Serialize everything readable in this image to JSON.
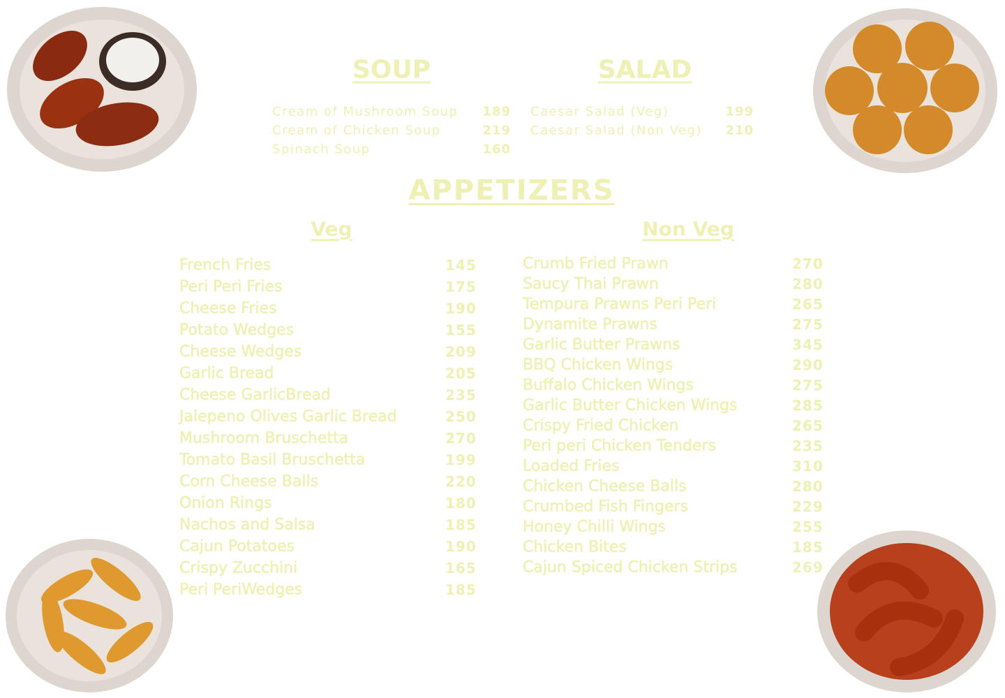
{
  "soup": {
    "title": "SOUP",
    "items": [
      {
        "name": "Cream of Mushroom Soup",
        "price": 189
      },
      {
        "name": "Cream of Chicken Soup",
        "price": 219
      },
      {
        "name": "Spinach Soup",
        "price": 160
      }
    ]
  },
  "salad": {
    "title": "SALAD",
    "items": [
      {
        "name": "Caesar Salad (Veg)",
        "price": 199
      },
      {
        "name": "Caesar Salad (Non Veg)",
        "price": 210
      }
    ]
  },
  "appetizers": {
    "title": "APPETIZERS",
    "veg": {
      "title": "Veg",
      "items": [
        {
          "name": "French Fries",
          "price": 145
        },
        {
          "name": "Peri Peri Fries",
          "price": 175
        },
        {
          "name": "Cheese Fries",
          "price": 190
        },
        {
          "name": "Potato Wedges",
          "price": 155
        },
        {
          "name": "Cheese Wedges",
          "price": 209
        },
        {
          "name": "Garlic Bread",
          "price": 205
        },
        {
          "name": "Cheese GarlicBread",
          "price": 235
        },
        {
          "name": "Jalepeno Olives Garlic Bread",
          "price": 250
        },
        {
          "name": "Mushroom Bruschetta",
          "price": 270
        },
        {
          "name": "Tomato Basil Bruschetta",
          "price": 199
        },
        {
          "name": "Corn Cheese Balls",
          "price": 220
        },
        {
          "name": "Onion Rings",
          "price": 180
        },
        {
          "name": "Nachos and Salsa",
          "price": 185
        },
        {
          "name": "Cajun Potatoes",
          "price": 190
        },
        {
          "name": "Crispy Zucchini",
          "price": 165
        },
        {
          "name": "Peri PeriWedges",
          "price": 185
        }
      ]
    },
    "non_veg": {
      "title": "Non Veg",
      "items": [
        {
          "name": "Crumb Fried Prawn",
          "price": 270
        },
        {
          "name": "Saucy Thai Prawn",
          "price": 280
        },
        {
          "name": "Tempura Prawns Peri Peri",
          "price": 265
        },
        {
          "name": "Dynamite Prawns",
          "price": 275
        },
        {
          "name": "Garlic Butter Prawns",
          "price": 345
        },
        {
          "name": "BBQ Chicken Wings",
          "price": 290
        },
        {
          "name": "Buffalo Chicken Wings",
          "price": 275
        },
        {
          "name": "Garlic Butter Chicken Wings",
          "price": 285
        },
        {
          "name": "Crispy Fried Chicken",
          "price": 265
        },
        {
          "name": "Peri peri Chicken Tenders",
          "price": 235
        },
        {
          "name": "Loaded Fries",
          "price": 310
        },
        {
          "name": "Chicken Cheese Balls",
          "price": 280
        },
        {
          "name": "Crumbed Fish Fingers",
          "price": 229
        },
        {
          "name": "Honey Chilli Wings",
          "price": 255
        },
        {
          "name": "Chicken Bites",
          "price": 185
        },
        {
          "name": "Cajun Spiced Chicken Strips",
          "price": 269
        }
      ]
    }
  }
}
